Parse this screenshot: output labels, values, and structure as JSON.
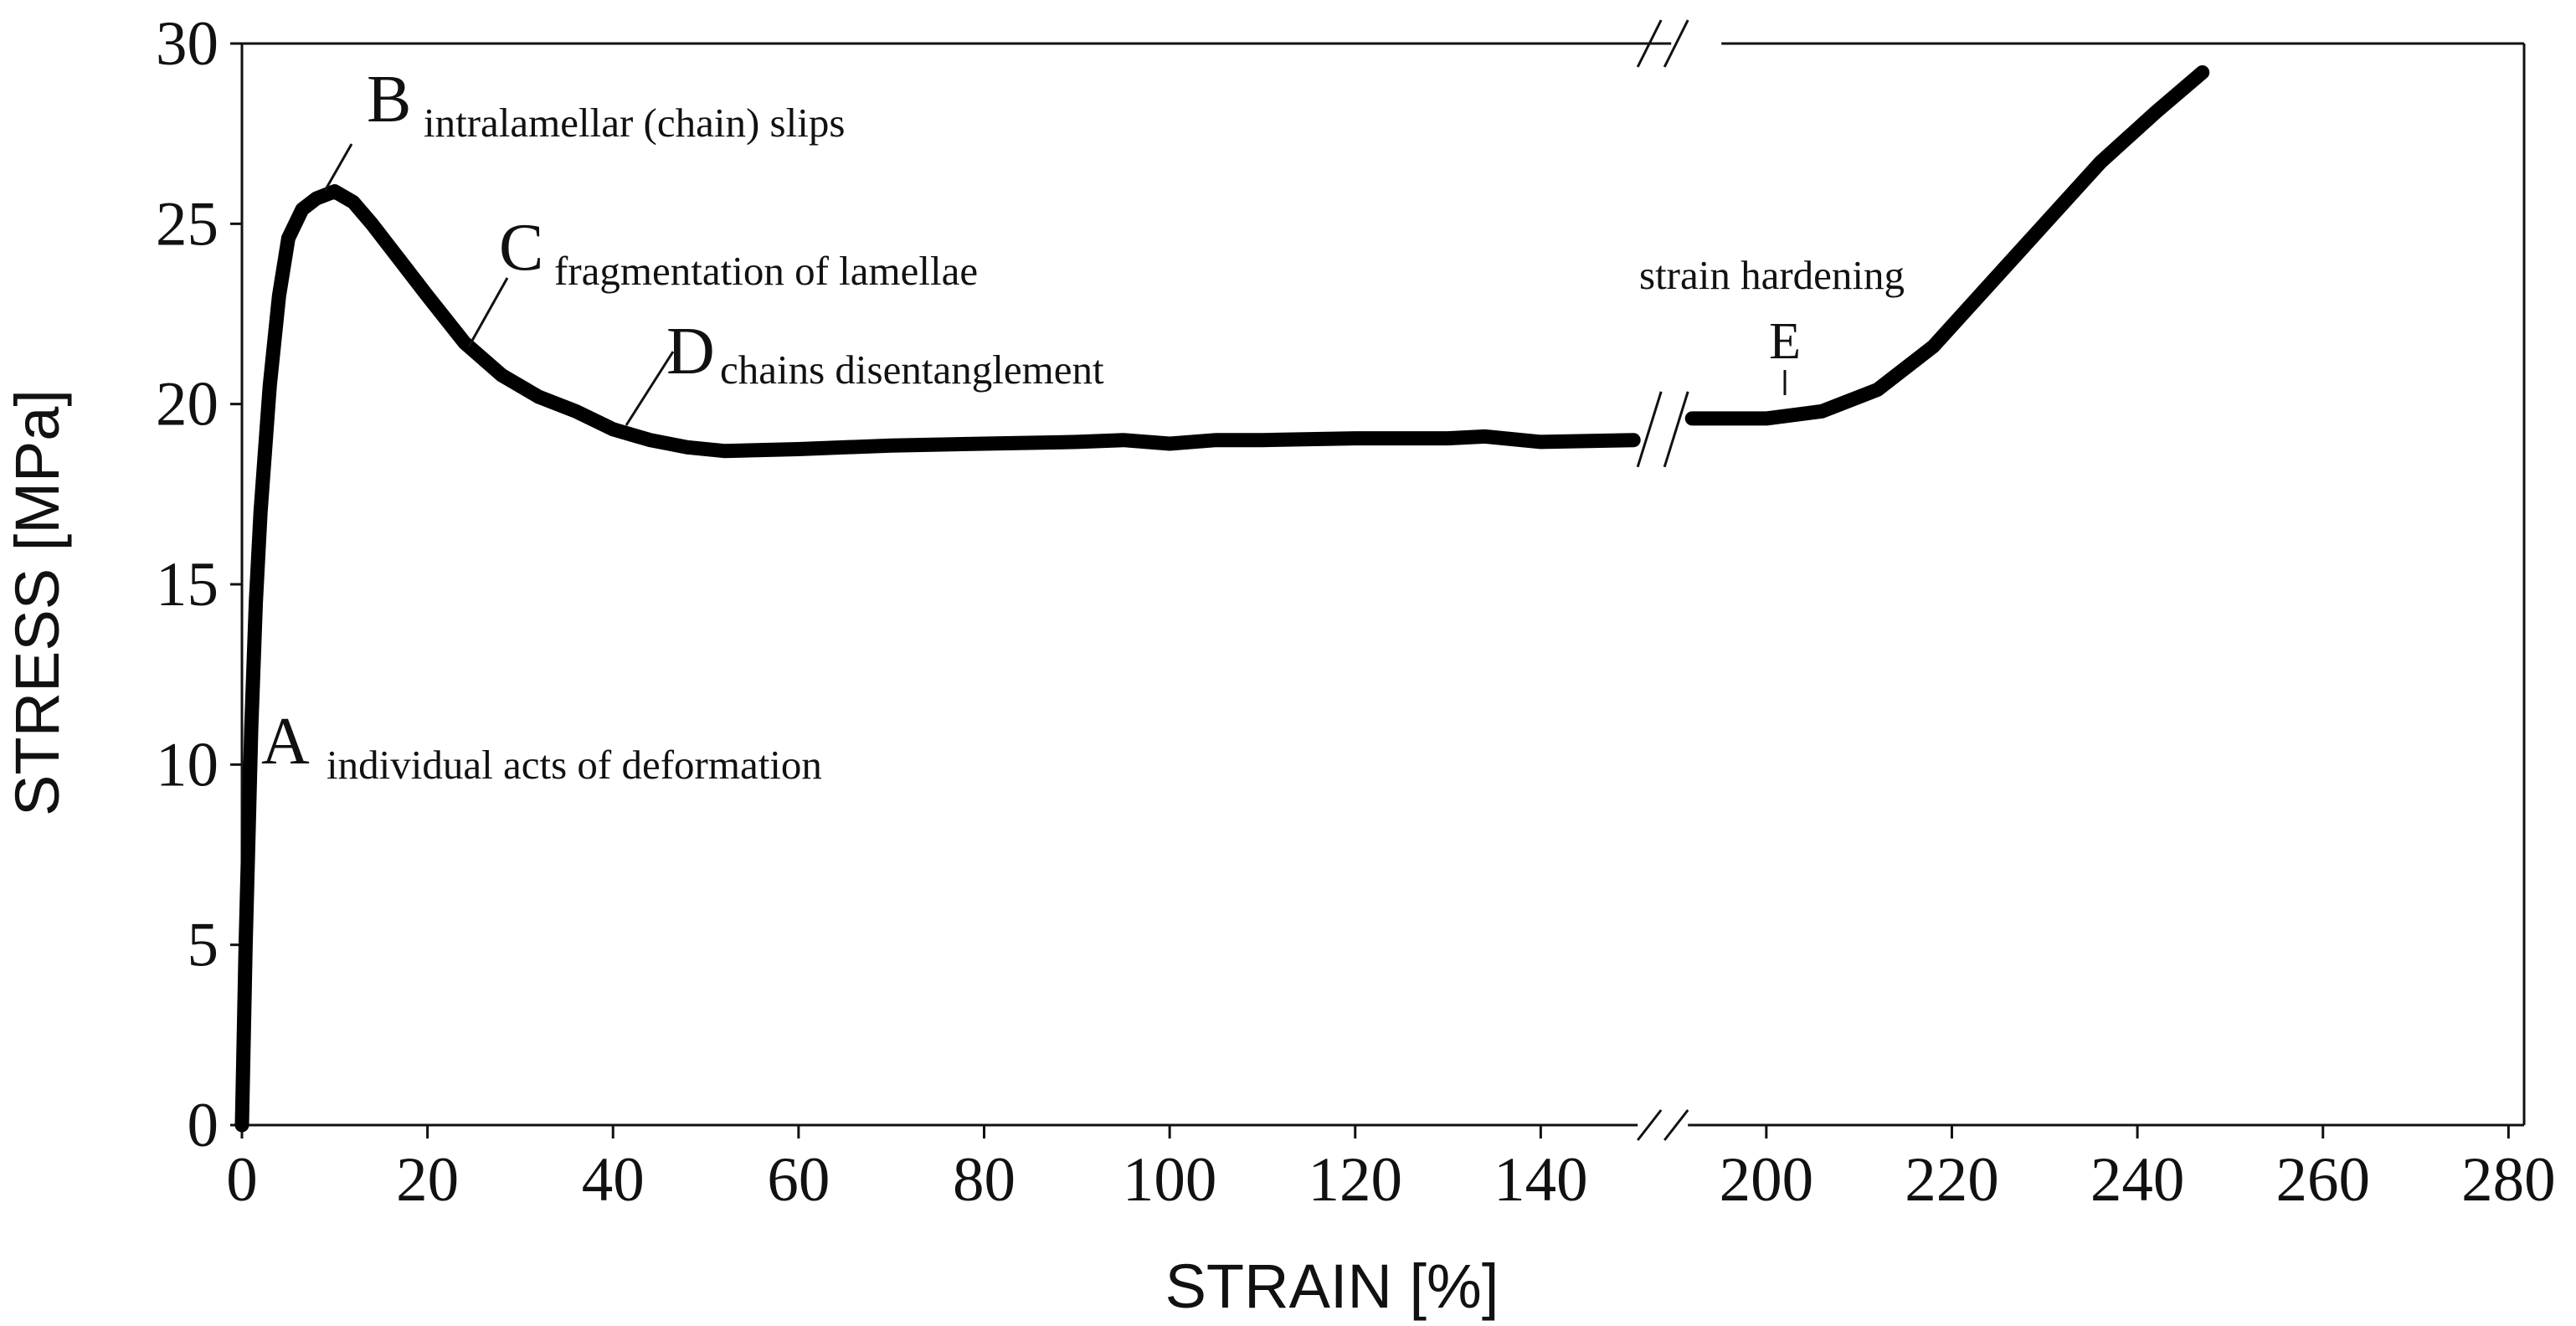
{
  "chart_data": {
    "type": "line",
    "title": "",
    "xlabel": "STRAIN [%]",
    "ylabel": "STRESS [MPa]",
    "ylim": [
      0,
      30
    ],
    "grid": false,
    "axis_break": {
      "x_from": 150,
      "x_to": 192
    },
    "x_ticks": [
      0,
      20,
      40,
      60,
      80,
      100,
      120,
      140,
      200,
      220,
      240,
      260,
      280
    ],
    "y_ticks": [
      0,
      5,
      10,
      15,
      20,
      25,
      30
    ],
    "series": [
      {
        "segment": "before-break",
        "points": [
          [
            0.0,
            0.0
          ],
          [
            0.2,
            2.5
          ],
          [
            0.4,
            5.0
          ],
          [
            0.7,
            8.0
          ],
          [
            1.0,
            11.0
          ],
          [
            1.5,
            14.5
          ],
          [
            2.0,
            17.0
          ],
          [
            3.0,
            20.5
          ],
          [
            4.0,
            23.0
          ],
          [
            5.0,
            24.6
          ],
          [
            6.5,
            25.4
          ],
          [
            8.0,
            25.7
          ],
          [
            10.0,
            25.9
          ],
          [
            12.0,
            25.6
          ],
          [
            14.0,
            25.0
          ],
          [
            17.0,
            24.0
          ],
          [
            20.0,
            23.0
          ],
          [
            24.0,
            21.7
          ],
          [
            28.0,
            20.8
          ],
          [
            32.0,
            20.2
          ],
          [
            36.0,
            19.8
          ],
          [
            40.0,
            19.3
          ],
          [
            44.0,
            19.0
          ],
          [
            48.0,
            18.8
          ],
          [
            52.0,
            18.7
          ],
          [
            60.0,
            18.75
          ],
          [
            70.0,
            18.85
          ],
          [
            80.0,
            18.9
          ],
          [
            90.0,
            18.95
          ],
          [
            95.0,
            19.0
          ],
          [
            100.0,
            18.9
          ],
          [
            105.0,
            19.0
          ],
          [
            110.0,
            19.0
          ],
          [
            120.0,
            19.05
          ],
          [
            130.0,
            19.05
          ],
          [
            134.0,
            19.1
          ],
          [
            140.0,
            18.95
          ],
          [
            150.0,
            19.0
          ]
        ]
      },
      {
        "segment": "after-break",
        "points": [
          [
            192.0,
            19.6
          ],
          [
            196.0,
            19.6
          ],
          [
            200.0,
            19.6
          ],
          [
            206.0,
            19.8
          ],
          [
            212.0,
            20.4
          ],
          [
            218.0,
            21.6
          ],
          [
            224.0,
            23.3
          ],
          [
            230.0,
            25.0
          ],
          [
            236.0,
            26.7
          ],
          [
            242.0,
            28.1
          ],
          [
            247.0,
            29.2
          ]
        ]
      }
    ],
    "annotations": [
      {
        "letter": "A",
        "text": "individual acts of deformation",
        "at": [
          0.5,
          10.0
        ]
      },
      {
        "letter": "B",
        "text": "intralamellar (chain) slips",
        "at": [
          10.0,
          25.9
        ]
      },
      {
        "letter": "C",
        "text": "fragmentation of lamellae",
        "at": [
          25.0,
          21.5
        ]
      },
      {
        "letter": "D",
        "text": "chains disentanglement",
        "at": [
          42.0,
          19.1
        ]
      },
      {
        "letter": "E",
        "text": "strain hardening",
        "at": [
          202.0,
          19.6
        ]
      }
    ]
  }
}
